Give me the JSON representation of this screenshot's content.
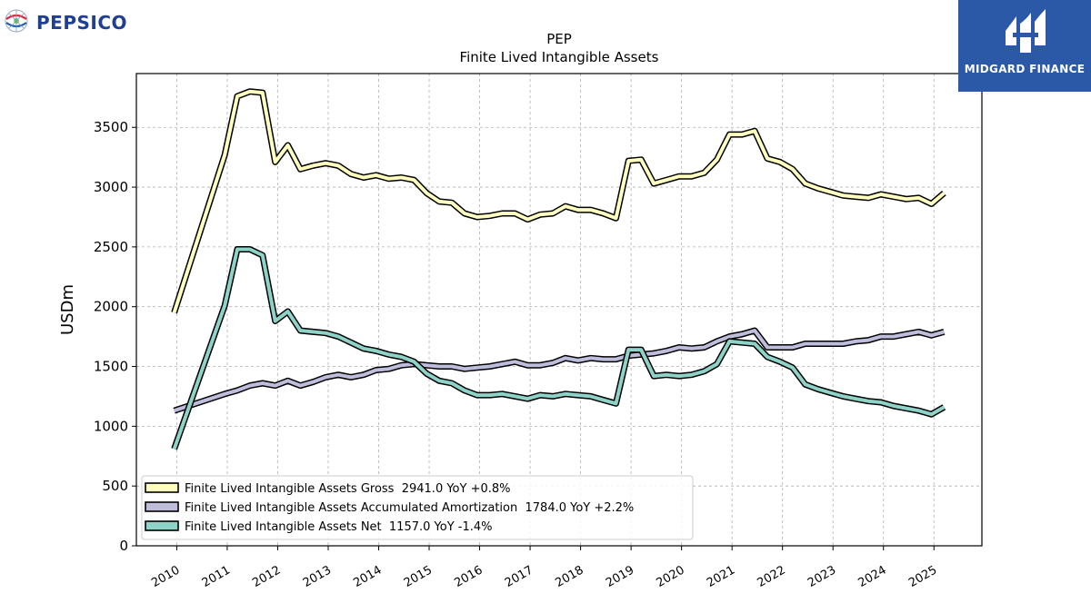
{
  "header": {
    "company_logo_text": "PEPSICO",
    "publisher_logo_text": "MIDGARD FINANCE"
  },
  "colors": {
    "gross": "#ffffbf",
    "accumulated": "#bfbddc",
    "net": "#8dd3c7",
    "outline": "#000000",
    "publisher_bg": "#2b59a8",
    "company_text": "#1f3f94"
  },
  "chart_data": {
    "type": "line",
    "title": "PEP",
    "subtitle": "Finite Lived Intangible Assets",
    "ylabel": "USDm",
    "xlabel": "",
    "ylim": [
      0,
      3950
    ],
    "xlim": [
      2009.2,
      2025.95
    ],
    "yticks": [
      0,
      500,
      1000,
      1500,
      2000,
      2500,
      3000,
      3500
    ],
    "xticks": [
      2010,
      2011,
      2012,
      2013,
      2014,
      2015,
      2016,
      2017,
      2018,
      2019,
      2020,
      2021,
      2022,
      2023,
      2024,
      2025
    ],
    "grid": true,
    "legend_position": "lower-left",
    "series": [
      {
        "name": "Finite Lived Intangible Assets Gross",
        "legend_label": "Finite Lived Intangible Assets Gross  2941.0 YoY +0.8%",
        "color_key": "gross",
        "points": [
          [
            2009.95,
            1950
          ],
          [
            2010.95,
            3270
          ],
          [
            2011.2,
            3760
          ],
          [
            2011.45,
            3800
          ],
          [
            2011.7,
            3790
          ],
          [
            2011.95,
            3210
          ],
          [
            2012.2,
            3350
          ],
          [
            2012.45,
            3150
          ],
          [
            2012.7,
            3180
          ],
          [
            2012.95,
            3200
          ],
          [
            2013.2,
            3180
          ],
          [
            2013.45,
            3110
          ],
          [
            2013.7,
            3080
          ],
          [
            2013.95,
            3100
          ],
          [
            2014.2,
            3070
          ],
          [
            2014.45,
            3080
          ],
          [
            2014.7,
            3060
          ],
          [
            2014.95,
            2950
          ],
          [
            2015.2,
            2880
          ],
          [
            2015.45,
            2870
          ],
          [
            2015.7,
            2780
          ],
          [
            2015.95,
            2750
          ],
          [
            2016.2,
            2760
          ],
          [
            2016.45,
            2780
          ],
          [
            2016.7,
            2780
          ],
          [
            2016.95,
            2730
          ],
          [
            2017.2,
            2770
          ],
          [
            2017.45,
            2780
          ],
          [
            2017.7,
            2840
          ],
          [
            2017.95,
            2810
          ],
          [
            2018.2,
            2810
          ],
          [
            2018.45,
            2780
          ],
          [
            2018.7,
            2740
          ],
          [
            2018.95,
            3220
          ],
          [
            2019.2,
            3230
          ],
          [
            2019.45,
            3030
          ],
          [
            2019.7,
            3060
          ],
          [
            2019.95,
            3090
          ],
          [
            2020.2,
            3090
          ],
          [
            2020.45,
            3120
          ],
          [
            2020.7,
            3230
          ],
          [
            2020.95,
            3440
          ],
          [
            2021.2,
            3440
          ],
          [
            2021.45,
            3470
          ],
          [
            2021.7,
            3240
          ],
          [
            2021.95,
            3210
          ],
          [
            2022.2,
            3150
          ],
          [
            2022.45,
            3030
          ],
          [
            2022.7,
            2990
          ],
          [
            2022.95,
            2960
          ],
          [
            2023.2,
            2930
          ],
          [
            2023.45,
            2920
          ],
          [
            2023.7,
            2910
          ],
          [
            2023.95,
            2940
          ],
          [
            2024.2,
            2920
          ],
          [
            2024.45,
            2900
          ],
          [
            2024.7,
            2910
          ],
          [
            2024.95,
            2860
          ],
          [
            2025.2,
            2950
          ]
        ]
      },
      {
        "name": "Finite Lived Intangible Assets Accumulated Amortization",
        "legend_label": "Finite Lived Intangible Assets Accumulated Amortization  1784.0 YoY +2.2%",
        "color_key": "accumulated",
        "points": [
          [
            2009.95,
            1130
          ],
          [
            2010.95,
            1270
          ],
          [
            2011.2,
            1300
          ],
          [
            2011.45,
            1340
          ],
          [
            2011.7,
            1360
          ],
          [
            2011.95,
            1340
          ],
          [
            2012.2,
            1380
          ],
          [
            2012.45,
            1340
          ],
          [
            2012.7,
            1370
          ],
          [
            2012.95,
            1410
          ],
          [
            2013.2,
            1430
          ],
          [
            2013.45,
            1410
          ],
          [
            2013.7,
            1430
          ],
          [
            2013.95,
            1470
          ],
          [
            2014.2,
            1480
          ],
          [
            2014.45,
            1510
          ],
          [
            2014.7,
            1520
          ],
          [
            2014.95,
            1510
          ],
          [
            2015.2,
            1500
          ],
          [
            2015.45,
            1500
          ],
          [
            2015.7,
            1480
          ],
          [
            2015.95,
            1490
          ],
          [
            2016.2,
            1500
          ],
          [
            2016.45,
            1520
          ],
          [
            2016.7,
            1540
          ],
          [
            2016.95,
            1510
          ],
          [
            2017.2,
            1510
          ],
          [
            2017.45,
            1530
          ],
          [
            2017.7,
            1570
          ],
          [
            2017.95,
            1550
          ],
          [
            2018.2,
            1570
          ],
          [
            2018.45,
            1560
          ],
          [
            2018.7,
            1560
          ],
          [
            2018.95,
            1590
          ],
          [
            2019.2,
            1600
          ],
          [
            2019.45,
            1610
          ],
          [
            2019.7,
            1630
          ],
          [
            2019.95,
            1660
          ],
          [
            2020.2,
            1650
          ],
          [
            2020.45,
            1660
          ],
          [
            2020.7,
            1710
          ],
          [
            2020.95,
            1750
          ],
          [
            2021.2,
            1770
          ],
          [
            2021.45,
            1800
          ],
          [
            2021.7,
            1660
          ],
          [
            2021.95,
            1660
          ],
          [
            2022.2,
            1660
          ],
          [
            2022.45,
            1690
          ],
          [
            2022.7,
            1690
          ],
          [
            2022.95,
            1690
          ],
          [
            2023.2,
            1690
          ],
          [
            2023.45,
            1710
          ],
          [
            2023.7,
            1720
          ],
          [
            2023.95,
            1750
          ],
          [
            2024.2,
            1750
          ],
          [
            2024.45,
            1770
          ],
          [
            2024.7,
            1790
          ],
          [
            2024.95,
            1760
          ],
          [
            2025.2,
            1790
          ]
        ]
      },
      {
        "name": "Finite Lived Intangible Assets Net",
        "legend_label": "Finite Lived Intangible Assets Net  1157.0 YoY -1.4%",
        "color_key": "net",
        "points": [
          [
            2009.95,
            810
          ],
          [
            2010.95,
            2010
          ],
          [
            2011.2,
            2480
          ],
          [
            2011.45,
            2480
          ],
          [
            2011.7,
            2430
          ],
          [
            2011.95,
            1880
          ],
          [
            2012.2,
            1960
          ],
          [
            2012.45,
            1800
          ],
          [
            2012.7,
            1790
          ],
          [
            2012.95,
            1780
          ],
          [
            2013.2,
            1750
          ],
          [
            2013.45,
            1700
          ],
          [
            2013.7,
            1650
          ],
          [
            2013.95,
            1630
          ],
          [
            2014.2,
            1600
          ],
          [
            2014.45,
            1580
          ],
          [
            2014.7,
            1540
          ],
          [
            2014.95,
            1440
          ],
          [
            2015.2,
            1380
          ],
          [
            2015.45,
            1360
          ],
          [
            2015.7,
            1300
          ],
          [
            2015.95,
            1260
          ],
          [
            2016.2,
            1260
          ],
          [
            2016.45,
            1270
          ],
          [
            2016.7,
            1250
          ],
          [
            2016.95,
            1230
          ],
          [
            2017.2,
            1260
          ],
          [
            2017.45,
            1250
          ],
          [
            2017.7,
            1270
          ],
          [
            2017.95,
            1260
          ],
          [
            2018.2,
            1250
          ],
          [
            2018.45,
            1220
          ],
          [
            2018.7,
            1190
          ],
          [
            2018.95,
            1640
          ],
          [
            2019.2,
            1640
          ],
          [
            2019.45,
            1420
          ],
          [
            2019.7,
            1430
          ],
          [
            2019.95,
            1420
          ],
          [
            2020.2,
            1430
          ],
          [
            2020.45,
            1460
          ],
          [
            2020.7,
            1520
          ],
          [
            2020.95,
            1710
          ],
          [
            2021.2,
            1700
          ],
          [
            2021.45,
            1690
          ],
          [
            2021.7,
            1580
          ],
          [
            2021.95,
            1540
          ],
          [
            2022.2,
            1490
          ],
          [
            2022.45,
            1350
          ],
          [
            2022.7,
            1310
          ],
          [
            2022.95,
            1280
          ],
          [
            2023.2,
            1250
          ],
          [
            2023.45,
            1230
          ],
          [
            2023.7,
            1210
          ],
          [
            2023.95,
            1200
          ],
          [
            2024.2,
            1170
          ],
          [
            2024.45,
            1150
          ],
          [
            2024.7,
            1130
          ],
          [
            2024.95,
            1100
          ],
          [
            2025.2,
            1160
          ]
        ]
      }
    ]
  }
}
